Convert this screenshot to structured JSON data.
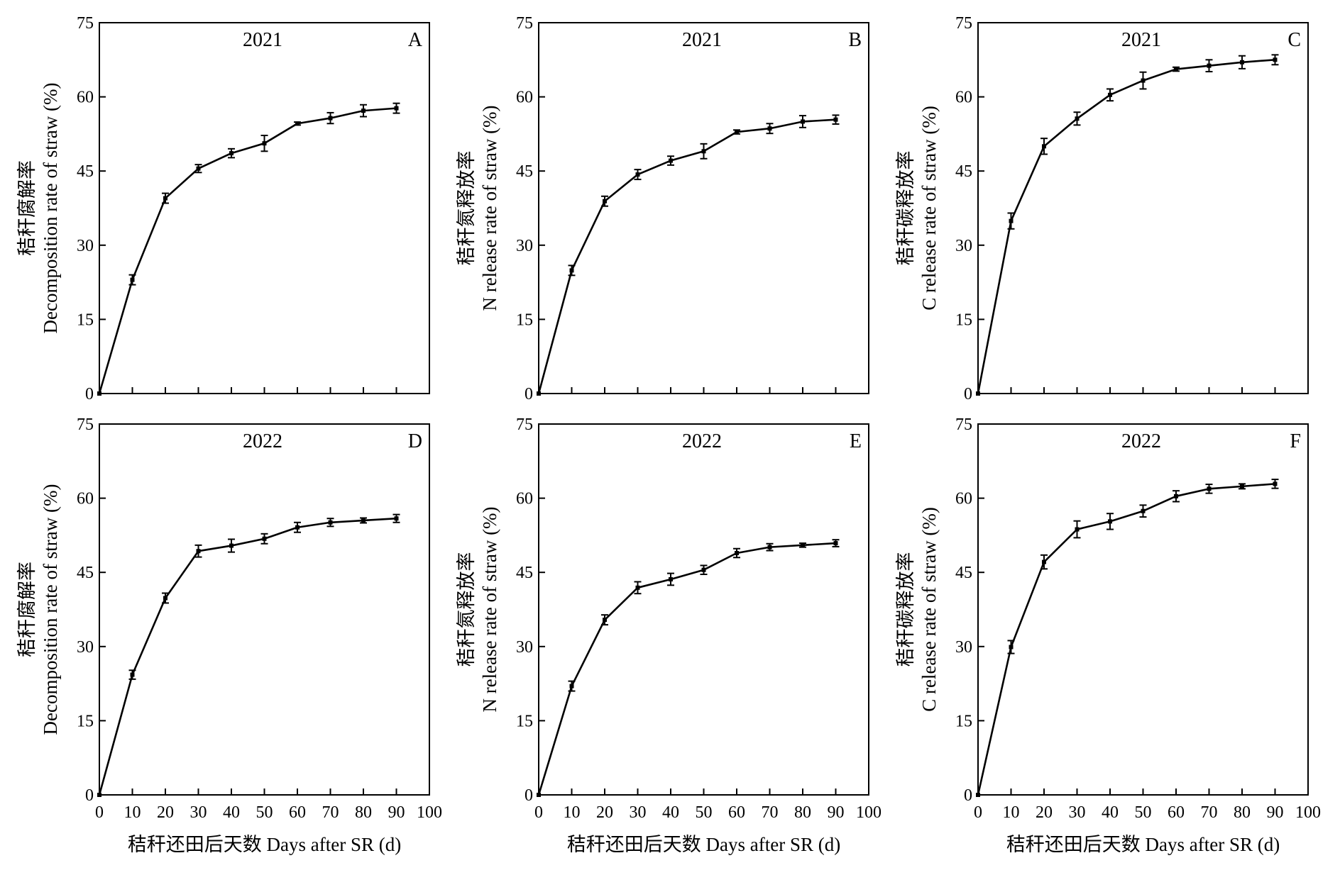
{
  "figure": {
    "x_axis_title": "秸秆还田后天数 Days after SR (d)"
  },
  "chart_data": [
    {
      "id": "A",
      "type": "line",
      "panel_label": "A",
      "year_label": "2021",
      "ylabel": "秸秆腐解率|Decomposition rate of  straw (%)",
      "xlabel": "",
      "xlim": [
        0,
        100
      ],
      "ylim": [
        0,
        75
      ],
      "xticks": [
        0,
        10,
        20,
        30,
        40,
        50,
        60,
        70,
        80,
        90,
        100
      ],
      "yticks": [
        0,
        15,
        30,
        45,
        60,
        75
      ],
      "grid": false,
      "x": [
        0,
        10,
        20,
        30,
        40,
        50,
        60,
        70,
        80,
        90
      ],
      "y": [
        0,
        23.0,
        39.5,
        45.5,
        48.6,
        50.6,
        54.6,
        55.7,
        57.2,
        57.7
      ],
      "err": [
        0,
        1.0,
        1.0,
        0.8,
        0.9,
        1.6,
        0.3,
        1.1,
        1.2,
        1.0
      ]
    },
    {
      "id": "B",
      "type": "line",
      "panel_label": "B",
      "year_label": "2021",
      "ylabel": "秸秆氮释放率|N release rate of  straw (%)",
      "xlabel": "",
      "xlim": [
        0,
        100
      ],
      "ylim": [
        0,
        75
      ],
      "xticks": [
        0,
        10,
        20,
        30,
        40,
        50,
        60,
        70,
        80,
        90,
        100
      ],
      "yticks": [
        0,
        15,
        30,
        45,
        60,
        75
      ],
      "grid": false,
      "x": [
        0,
        10,
        20,
        30,
        40,
        50,
        60,
        70,
        80,
        90
      ],
      "y": [
        0,
        24.9,
        38.9,
        44.3,
        47.1,
        49.0,
        52.9,
        53.6,
        55.0,
        55.4
      ],
      "err": [
        0,
        1.0,
        1.0,
        1.0,
        0.9,
        1.5,
        0.4,
        1.0,
        1.2,
        0.9
      ]
    },
    {
      "id": "C",
      "type": "line",
      "panel_label": "C",
      "year_label": "2021",
      "ylabel": "秸秆碳释放率|C release rate of straw (%)",
      "xlabel": "",
      "xlim": [
        0,
        100
      ],
      "ylim": [
        0,
        75
      ],
      "xticks": [
        0,
        10,
        20,
        30,
        40,
        50,
        60,
        70,
        80,
        90,
        100
      ],
      "yticks": [
        0,
        15,
        30,
        45,
        60,
        75
      ],
      "grid": false,
      "x": [
        0,
        10,
        20,
        30,
        40,
        50,
        60,
        70,
        80,
        90
      ],
      "y": [
        0,
        34.9,
        50.0,
        55.6,
        60.4,
        63.3,
        65.6,
        66.3,
        67.0,
        67.5
      ],
      "err": [
        0,
        1.6,
        1.6,
        1.3,
        1.2,
        1.7,
        0.4,
        1.2,
        1.3,
        1.0
      ]
    },
    {
      "id": "D",
      "type": "line",
      "panel_label": "D",
      "year_label": "2022",
      "ylabel": "秸秆腐解率|Decomposition rate of  straw (%)",
      "xlabel": "秸秆还田后天数 Days after SR (d)",
      "xlim": [
        0,
        100
      ],
      "ylim": [
        0,
        75
      ],
      "xticks": [
        0,
        10,
        20,
        30,
        40,
        50,
        60,
        70,
        80,
        90,
        100
      ],
      "yticks": [
        0,
        15,
        30,
        45,
        60,
        75
      ],
      "grid": false,
      "x": [
        0,
        10,
        20,
        30,
        40,
        50,
        60,
        70,
        80,
        90
      ],
      "y": [
        0,
        24.3,
        39.8,
        49.3,
        50.4,
        51.8,
        54.1,
        55.1,
        55.5,
        55.9
      ],
      "err": [
        0,
        0.9,
        1.0,
        1.2,
        1.3,
        1.0,
        1.0,
        0.8,
        0.5,
        0.8
      ]
    },
    {
      "id": "E",
      "type": "line",
      "panel_label": "E",
      "year_label": "2022",
      "ylabel": "秸秆氮释放率|N release rate of straw (%)",
      "xlabel": "秸秆还田后天数 Days after SR (d)",
      "xlim": [
        0,
        100
      ],
      "ylim": [
        0,
        75
      ],
      "xticks": [
        0,
        10,
        20,
        30,
        40,
        50,
        60,
        70,
        80,
        90,
        100
      ],
      "yticks": [
        0,
        15,
        30,
        45,
        60,
        75
      ],
      "grid": false,
      "x": [
        0,
        10,
        20,
        30,
        40,
        50,
        60,
        70,
        80,
        90
      ],
      "y": [
        0,
        22.0,
        35.4,
        41.9,
        43.6,
        45.5,
        48.9,
        50.1,
        50.5,
        50.9
      ],
      "err": [
        0,
        1.0,
        1.0,
        1.2,
        1.2,
        0.9,
        0.9,
        0.7,
        0.4,
        0.7
      ]
    },
    {
      "id": "F",
      "type": "line",
      "panel_label": "F",
      "year_label": "2022",
      "ylabel": "秸秆碳释放率|C release rate of straw (%)",
      "xlabel": "秸秆还田后天数 Days after SR (d)",
      "xlim": [
        0,
        100
      ],
      "ylim": [
        0,
        75
      ],
      "xticks": [
        0,
        10,
        20,
        30,
        40,
        50,
        60,
        70,
        80,
        90,
        100
      ],
      "yticks": [
        0,
        15,
        30,
        45,
        60,
        75
      ],
      "grid": false,
      "x": [
        0,
        10,
        20,
        30,
        40,
        50,
        60,
        70,
        80,
        90
      ],
      "y": [
        0,
        29.9,
        47.1,
        53.7,
        55.3,
        57.4,
        60.4,
        61.9,
        62.4,
        62.9
      ],
      "err": [
        0,
        1.3,
        1.4,
        1.7,
        1.6,
        1.2,
        1.1,
        0.9,
        0.5,
        0.9
      ]
    }
  ]
}
